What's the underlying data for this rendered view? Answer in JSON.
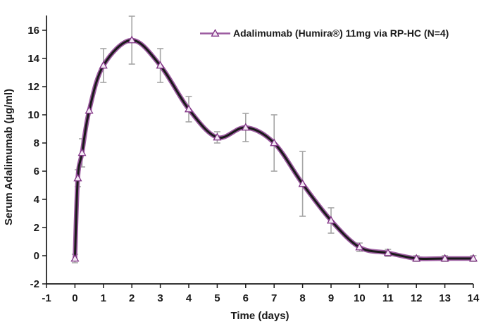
{
  "chart_data": {
    "type": "line",
    "title": "",
    "xlabel": "Time (days)",
    "ylabel": "Serum Adalimumab (µg/ml)",
    "xlim": [
      -1,
      14
    ],
    "ylim": [
      -2,
      16
    ],
    "x_ticks": [
      -1,
      0,
      1,
      2,
      3,
      4,
      5,
      6,
      7,
      8,
      9,
      10,
      11,
      12,
      13,
      14
    ],
    "y_ticks": [
      -2,
      0,
      2,
      4,
      6,
      8,
      10,
      12,
      14,
      16
    ],
    "grid": false,
    "legend_position": "top-right-inside",
    "colors": {
      "line": "#1a1a1a",
      "band": "#9c5ba0",
      "marker_edge": "#7d2f82",
      "marker_fill": "#f3e8f4",
      "error_bar": "#a5a5a5",
      "axis": "#1a1a1a"
    },
    "series": [
      {
        "name": "Adalimumab (Humira®) 11mg via RP-HC (N=4)",
        "marker": "open-triangle",
        "x": [
          0,
          0.1,
          0.25,
          0.5,
          1,
          2,
          3,
          4,
          5,
          6,
          7,
          8,
          9,
          10,
          11,
          12,
          13,
          14
        ],
        "y": [
          -0.2,
          5.5,
          7.3,
          10.3,
          13.5,
          15.3,
          13.5,
          10.4,
          8.4,
          9.1,
          8.0,
          5.1,
          2.5,
          0.6,
          0.2,
          -0.2,
          -0.2,
          -0.2
        ],
        "yerr": [
          0.3,
          0.6,
          1.0,
          0,
          1.2,
          1.7,
          1.2,
          0.9,
          0.4,
          1.0,
          2.0,
          2.3,
          0.9,
          0.3,
          0.25,
          0.2,
          0.2,
          0.2
        ]
      }
    ]
  }
}
